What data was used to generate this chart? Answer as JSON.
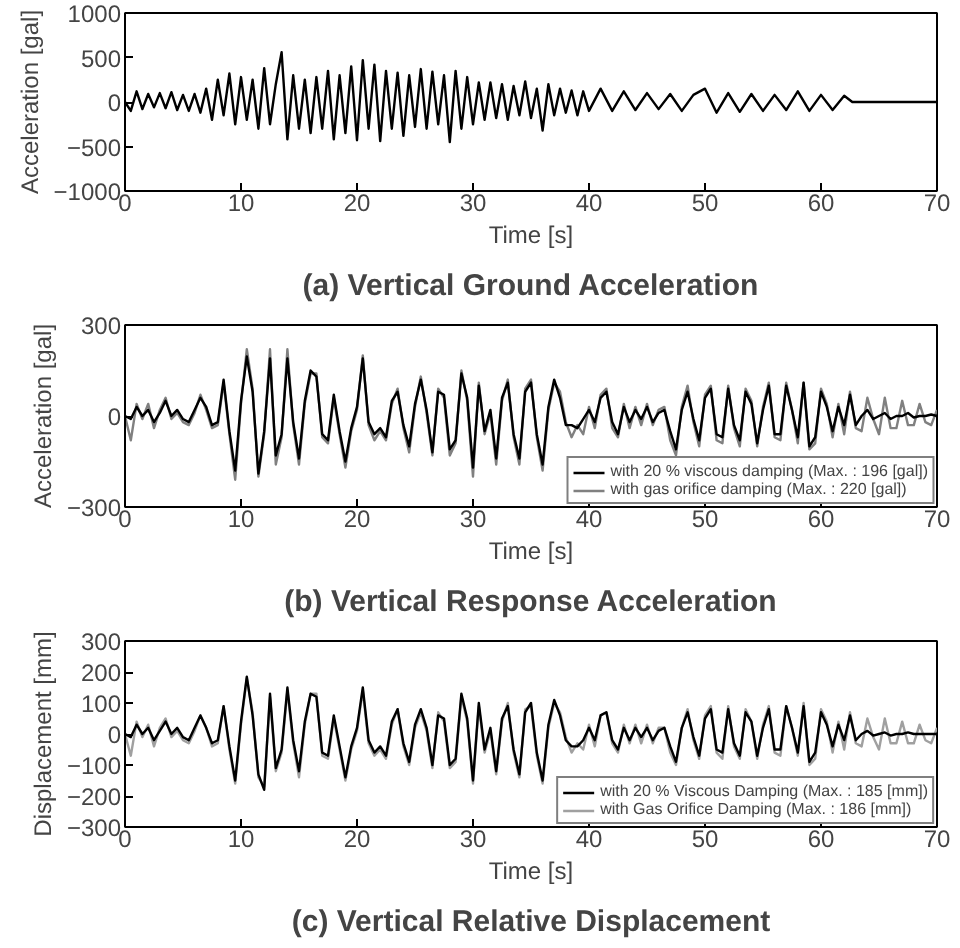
{
  "chart_data": [
    {
      "type": "line",
      "title": "(a) Vertical Ground Acceleration",
      "xlabel": "Time [s]",
      "ylabel": "Acceleration [gal]",
      "xlim": [
        0,
        70
      ],
      "xticks": [
        0,
        10,
        20,
        30,
        40,
        50,
        60,
        70
      ],
      "ylim": [
        -1000,
        1000
      ],
      "yticks": [
        -1000,
        -500,
        0,
        500,
        1000
      ],
      "grid": false,
      "legend": false,
      "series": [
        {
          "color": "#000000",
          "x": [
            0,
            0.5,
            1,
            1.5,
            2,
            2.5,
            3,
            3.5,
            4,
            4.5,
            5,
            5.5,
            6,
            6.5,
            7,
            7.5,
            8,
            8.5,
            9,
            9.5,
            10,
            10.5,
            11,
            11.5,
            12,
            12.5,
            13,
            13.5,
            14,
            14.5,
            15,
            15.5,
            16,
            16.5,
            17,
            17.5,
            18,
            18.5,
            19,
            19.5,
            20,
            20.5,
            21,
            21.5,
            22,
            22.5,
            23,
            23.5,
            24,
            24.5,
            25,
            25.5,
            26,
            26.5,
            27,
            27.5,
            28,
            28.5,
            29,
            29.5,
            30,
            30.5,
            31,
            31.5,
            32,
            32.5,
            33,
            33.5,
            34,
            34.5,
            35,
            35.5,
            36,
            36.5,
            37,
            37.5,
            38,
            38.5,
            39,
            39.5,
            40,
            41,
            42,
            43,
            44,
            45,
            46,
            47,
            48,
            49,
            50,
            51,
            52,
            53,
            54,
            55,
            56,
            57,
            58,
            59,
            60,
            61,
            62,
            62.7,
            70
          ],
          "values": [
            0,
            -100,
            120,
            -80,
            90,
            -60,
            100,
            -70,
            110,
            -90,
            80,
            -100,
            90,
            -120,
            150,
            -200,
            250,
            -150,
            320,
            -250,
            280,
            -200,
            250,
            -300,
            380,
            -250,
            200,
            560,
            -420,
            300,
            -300,
            250,
            -350,
            280,
            -300,
            350,
            -420,
            300,
            -350,
            400,
            -430,
            470,
            -300,
            420,
            -440,
            350,
            -300,
            330,
            -380,
            300,
            -280,
            370,
            -300,
            340,
            -250,
            300,
            -450,
            350,
            -300,
            280,
            -250,
            220,
            -200,
            220,
            -180,
            200,
            -200,
            180,
            -150,
            230,
            -180,
            150,
            -320,
            200,
            -150,
            150,
            -120,
            130,
            -150,
            120,
            -100,
            150,
            -100,
            120,
            -90,
            100,
            -80,
            90,
            -100,
            80,
            150,
            -120,
            100,
            -110,
            90,
            -100,
            80,
            -90,
            120,
            -100,
            80,
            -90,
            70,
            0,
            0
          ]
        }
      ]
    },
    {
      "type": "line",
      "title": "(b) Vertical Response Acceleration",
      "xlabel": "Time [s]",
      "ylabel": "Acceleration [gal]",
      "xlim": [
        0,
        70
      ],
      "xticks": [
        0,
        10,
        20,
        30,
        40,
        50,
        60,
        70
      ],
      "ylim": [
        -300,
        300
      ],
      "yticks": [
        -300,
        0,
        300
      ],
      "grid": false,
      "legend": "bottom right",
      "x": [
        0,
        0.5,
        1,
        1.5,
        2,
        2.5,
        3,
        3.5,
        4,
        4.5,
        5,
        5.5,
        6,
        6.5,
        7,
        7.5,
        8,
        8.5,
        9,
        9.5,
        10,
        10.5,
        11,
        11.5,
        12,
        12.5,
        13,
        13.5,
        14,
        14.5,
        15,
        15.5,
        16,
        16.5,
        17,
        17.5,
        18,
        18.5,
        19,
        19.5,
        20,
        20.5,
        21,
        21.5,
        22,
        22.5,
        23,
        23.5,
        24,
        24.5,
        25,
        25.5,
        26,
        26.5,
        27,
        27.5,
        28,
        28.5,
        29,
        29.5,
        30,
        30.5,
        31,
        31.5,
        32,
        32.5,
        33,
        33.5,
        34,
        34.5,
        35,
        35.5,
        36,
        36.5,
        37,
        37.5,
        38,
        38.5,
        39,
        39.5,
        40,
        40.5,
        41,
        41.5,
        42,
        42.5,
        43,
        43.5,
        44,
        44.5,
        45,
        45.5,
        46,
        46.5,
        47,
        47.5,
        48,
        48.5,
        49,
        49.5,
        50,
        50.5,
        51,
        51.5,
        52,
        52.5,
        53,
        53.5,
        54,
        54.5,
        55,
        55.5,
        56,
        56.5,
        57,
        57.5,
        58,
        58.5,
        59,
        59.5,
        60,
        60.5,
        61,
        61.5,
        62,
        62.5,
        63,
        63.5,
        64,
        64.5,
        65,
        65.5,
        66,
        66.5,
        67,
        67.5,
        68,
        68.5,
        69,
        69.5,
        70
      ],
      "series": [
        {
          "name": "with gas orifice damping (Max. : 220 [gal])",
          "color": "#808080",
          "values": [
            0,
            -80,
            40,
            -10,
            40,
            -40,
            20,
            60,
            -10,
            10,
            -20,
            -30,
            10,
            70,
            20,
            -40,
            -30,
            110,
            -60,
            -210,
            40,
            220,
            90,
            -200,
            -60,
            220,
            -160,
            -70,
            220,
            -30,
            -160,
            40,
            140,
            140,
            -70,
            -90,
            60,
            -60,
            -170,
            -50,
            20,
            200,
            -30,
            -80,
            -50,
            -80,
            40,
            90,
            -40,
            -120,
            30,
            130,
            10,
            -130,
            90,
            60,
            -130,
            -90,
            150,
            50,
            -200,
            110,
            -60,
            10,
            -160,
            50,
            120,
            -70,
            -160,
            90,
            120,
            -70,
            -180,
            20,
            110,
            80,
            -20,
            -70,
            -30,
            -60,
            30,
            -40,
            70,
            90,
            -40,
            -70,
            40,
            -40,
            30,
            -30,
            40,
            -30,
            20,
            30,
            -80,
            -130,
            30,
            100,
            -20,
            -100,
            70,
            100,
            -80,
            -90,
            100,
            -40,
            -100,
            90,
            50,
            -100,
            30,
            110,
            -70,
            -80,
            110,
            20,
            -90,
            110,
            -110,
            -90,
            90,
            40,
            -70,
            40,
            -60,
            80,
            -40,
            -50,
            60,
            -10,
            -60,
            60,
            -40,
            -40,
            50,
            -30,
            -30,
            40,
            -20,
            -30,
            20
          ]
        },
        {
          "name": "with 20 % viscous damping (Max. : 196 [gal])",
          "color": "#000000",
          "values": [
            0,
            -10,
            30,
            0,
            20,
            -20,
            10,
            50,
            0,
            20,
            -10,
            -20,
            20,
            60,
            30,
            -30,
            -20,
            120,
            -50,
            -180,
            50,
            196,
            80,
            -190,
            -50,
            190,
            -130,
            -60,
            190,
            -20,
            -140,
            50,
            150,
            130,
            -60,
            -80,
            70,
            -50,
            -150,
            -40,
            30,
            190,
            -20,
            -60,
            -40,
            -70,
            50,
            80,
            -30,
            -100,
            40,
            120,
            20,
            -120,
            80,
            70,
            -110,
            -80,
            140,
            60,
            -170,
            100,
            -50,
            20,
            -140,
            60,
            110,
            -60,
            -140,
            80,
            110,
            -60,
            -160,
            30,
            120,
            60,
            -30,
            -30,
            -40,
            -10,
            20,
            -20,
            60,
            80,
            -20,
            -60,
            30,
            -20,
            20,
            -10,
            30,
            -20,
            10,
            20,
            -50,
            -110,
            20,
            80,
            -10,
            -80,
            60,
            90,
            -60,
            -70,
            90,
            -30,
            -80,
            80,
            40,
            -90,
            20,
            100,
            -60,
            -60,
            100,
            20,
            -70,
            110,
            -100,
            -70,
            80,
            30,
            -50,
            30,
            -30,
            70,
            -30,
            0,
            20,
            -10,
            0,
            10,
            -10,
            0,
            0,
            10,
            -5,
            0,
            0,
            5,
            0
          ]
        }
      ]
    },
    {
      "type": "line",
      "title": "(c) Vertical Relative Displacement",
      "xlabel": "Time [s]",
      "ylabel": "Displacement [mm]",
      "xlim": [
        0,
        70
      ],
      "xticks": [
        0,
        10,
        20,
        30,
        40,
        50,
        60,
        70
      ],
      "ylim": [
        -300,
        300
      ],
      "yticks": [
        -300,
        -200,
        -100,
        0,
        100,
        200,
        300
      ],
      "grid": false,
      "legend": "bottom right",
      "x": [
        0,
        0.5,
        1,
        1.5,
        2,
        2.5,
        3,
        3.5,
        4,
        4.5,
        5,
        5.5,
        6,
        6.5,
        7,
        7.5,
        8,
        8.5,
        9,
        9.5,
        10,
        10.5,
        11,
        11.5,
        12,
        12.5,
        13,
        13.5,
        14,
        14.5,
        15,
        15.5,
        16,
        16.5,
        17,
        17.5,
        18,
        18.5,
        19,
        19.5,
        20,
        20.5,
        21,
        21.5,
        22,
        22.5,
        23,
        23.5,
        24,
        24.5,
        25,
        25.5,
        26,
        26.5,
        27,
        27.5,
        28,
        28.5,
        29,
        29.5,
        30,
        30.5,
        31,
        31.5,
        32,
        32.5,
        33,
        33.5,
        34,
        34.5,
        35,
        35.5,
        36,
        36.5,
        37,
        37.5,
        38,
        38.5,
        39,
        39.5,
        40,
        40.5,
        41,
        41.5,
        42,
        42.5,
        43,
        43.5,
        44,
        44.5,
        45,
        45.5,
        46,
        46.5,
        47,
        47.5,
        48,
        48.5,
        49,
        49.5,
        50,
        50.5,
        51,
        51.5,
        52,
        52.5,
        53,
        53.5,
        54,
        54.5,
        55,
        55.5,
        56,
        56.5,
        57,
        57.5,
        58,
        58.5,
        59,
        59.5,
        60,
        60.5,
        61,
        61.5,
        62,
        62.5,
        63,
        63.5,
        64,
        64.5,
        65,
        65.5,
        66,
        66.5,
        67,
        67.5,
        68,
        68.5,
        69,
        69.5,
        70
      ],
      "series": [
        {
          "name": "with Gas Orifice Damping (Max. : 186 [mm])",
          "color": "#a0a0a0",
          "values": [
            0,
            -70,
            40,
            -10,
            30,
            -40,
            20,
            50,
            -10,
            10,
            -20,
            -30,
            10,
            60,
            20,
            -40,
            -30,
            90,
            -50,
            -160,
            30,
            180,
            70,
            -140,
            -170,
            120,
            -120,
            -60,
            140,
            -30,
            -140,
            30,
            130,
            130,
            -70,
            -80,
            50,
            -50,
            -150,
            -50,
            10,
            140,
            -30,
            -70,
            -50,
            -80,
            30,
            80,
            -40,
            -100,
            20,
            70,
            10,
            -110,
            70,
            40,
            -110,
            -90,
            120,
            40,
            -160,
            90,
            -60,
            10,
            -130,
            40,
            100,
            -60,
            -140,
            80,
            90,
            -70,
            -160,
            20,
            100,
            70,
            -10,
            -60,
            -30,
            -50,
            30,
            -40,
            60,
            70,
            -30,
            -60,
            30,
            -30,
            30,
            -30,
            30,
            -30,
            20,
            20,
            -60,
            -100,
            20,
            80,
            -20,
            -80,
            60,
            90,
            -60,
            -80,
            90,
            -40,
            -80,
            80,
            40,
            -80,
            30,
            90,
            -60,
            -70,
            90,
            20,
            -70,
            100,
            -100,
            -80,
            80,
            40,
            -60,
            40,
            -50,
            70,
            -30,
            -40,
            50,
            -10,
            -50,
            50,
            -30,
            -30,
            40,
            -30,
            -30,
            30,
            -20,
            -30,
            20
          ]
        },
        {
          "name": "with 20 % Viscous Damping (Max. : 185 [mm])",
          "color": "#000000",
          "values": [
            0,
            -10,
            30,
            0,
            20,
            -20,
            10,
            40,
            0,
            20,
            -10,
            -20,
            20,
            60,
            20,
            -30,
            -20,
            90,
            -40,
            -150,
            40,
            185,
            60,
            -130,
            -180,
            130,
            -110,
            -50,
            150,
            -20,
            -120,
            40,
            130,
            120,
            -60,
            -70,
            60,
            -40,
            -140,
            -40,
            20,
            150,
            -20,
            -60,
            -40,
            -70,
            40,
            80,
            -30,
            -90,
            30,
            80,
            20,
            -100,
            60,
            50,
            -100,
            -80,
            130,
            50,
            -150,
            100,
            -50,
            20,
            -120,
            50,
            90,
            -50,
            -130,
            70,
            100,
            -60,
            -150,
            30,
            110,
            60,
            -20,
            -40,
            -40,
            -20,
            20,
            -20,
            60,
            70,
            -20,
            -50,
            20,
            -20,
            20,
            -10,
            20,
            -20,
            10,
            20,
            -40,
            -90,
            20,
            70,
            -10,
            -70,
            50,
            80,
            -50,
            -60,
            80,
            -30,
            -70,
            70,
            40,
            -70,
            20,
            80,
            -50,
            -50,
            90,
            20,
            -60,
            90,
            -90,
            -60,
            70,
            30,
            -40,
            30,
            -20,
            60,
            -20,
            0,
            10,
            -5,
            0,
            5,
            -5,
            0,
            0,
            5,
            0,
            0,
            0,
            0,
            0
          ]
        }
      ]
    }
  ]
}
